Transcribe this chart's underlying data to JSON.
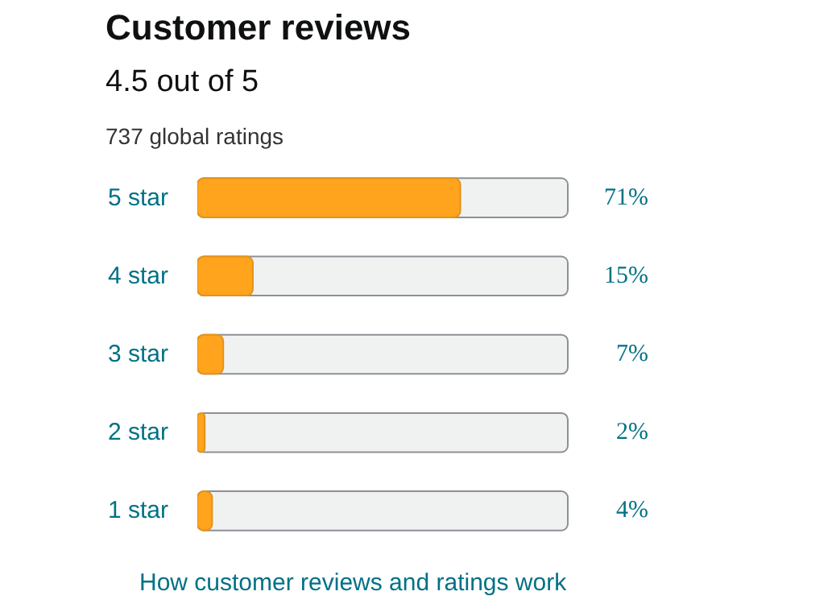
{
  "chart_data": {
    "type": "bar",
    "orientation": "horizontal",
    "title": "Customer reviews",
    "subtitle": "4.5 out of 5",
    "categories": [
      "5 star",
      "4 star",
      "3 star",
      "2 star",
      "1 star"
    ],
    "values": [
      71,
      15,
      7,
      2,
      4
    ],
    "value_labels": [
      "71%",
      "15%",
      "7%",
      "2%",
      "4%"
    ],
    "color": "#ffa41c",
    "xlim": [
      0,
      100
    ],
    "annotations": [
      "737 global ratings",
      "How customer reviews and ratings work"
    ],
    "grid": false
  }
}
